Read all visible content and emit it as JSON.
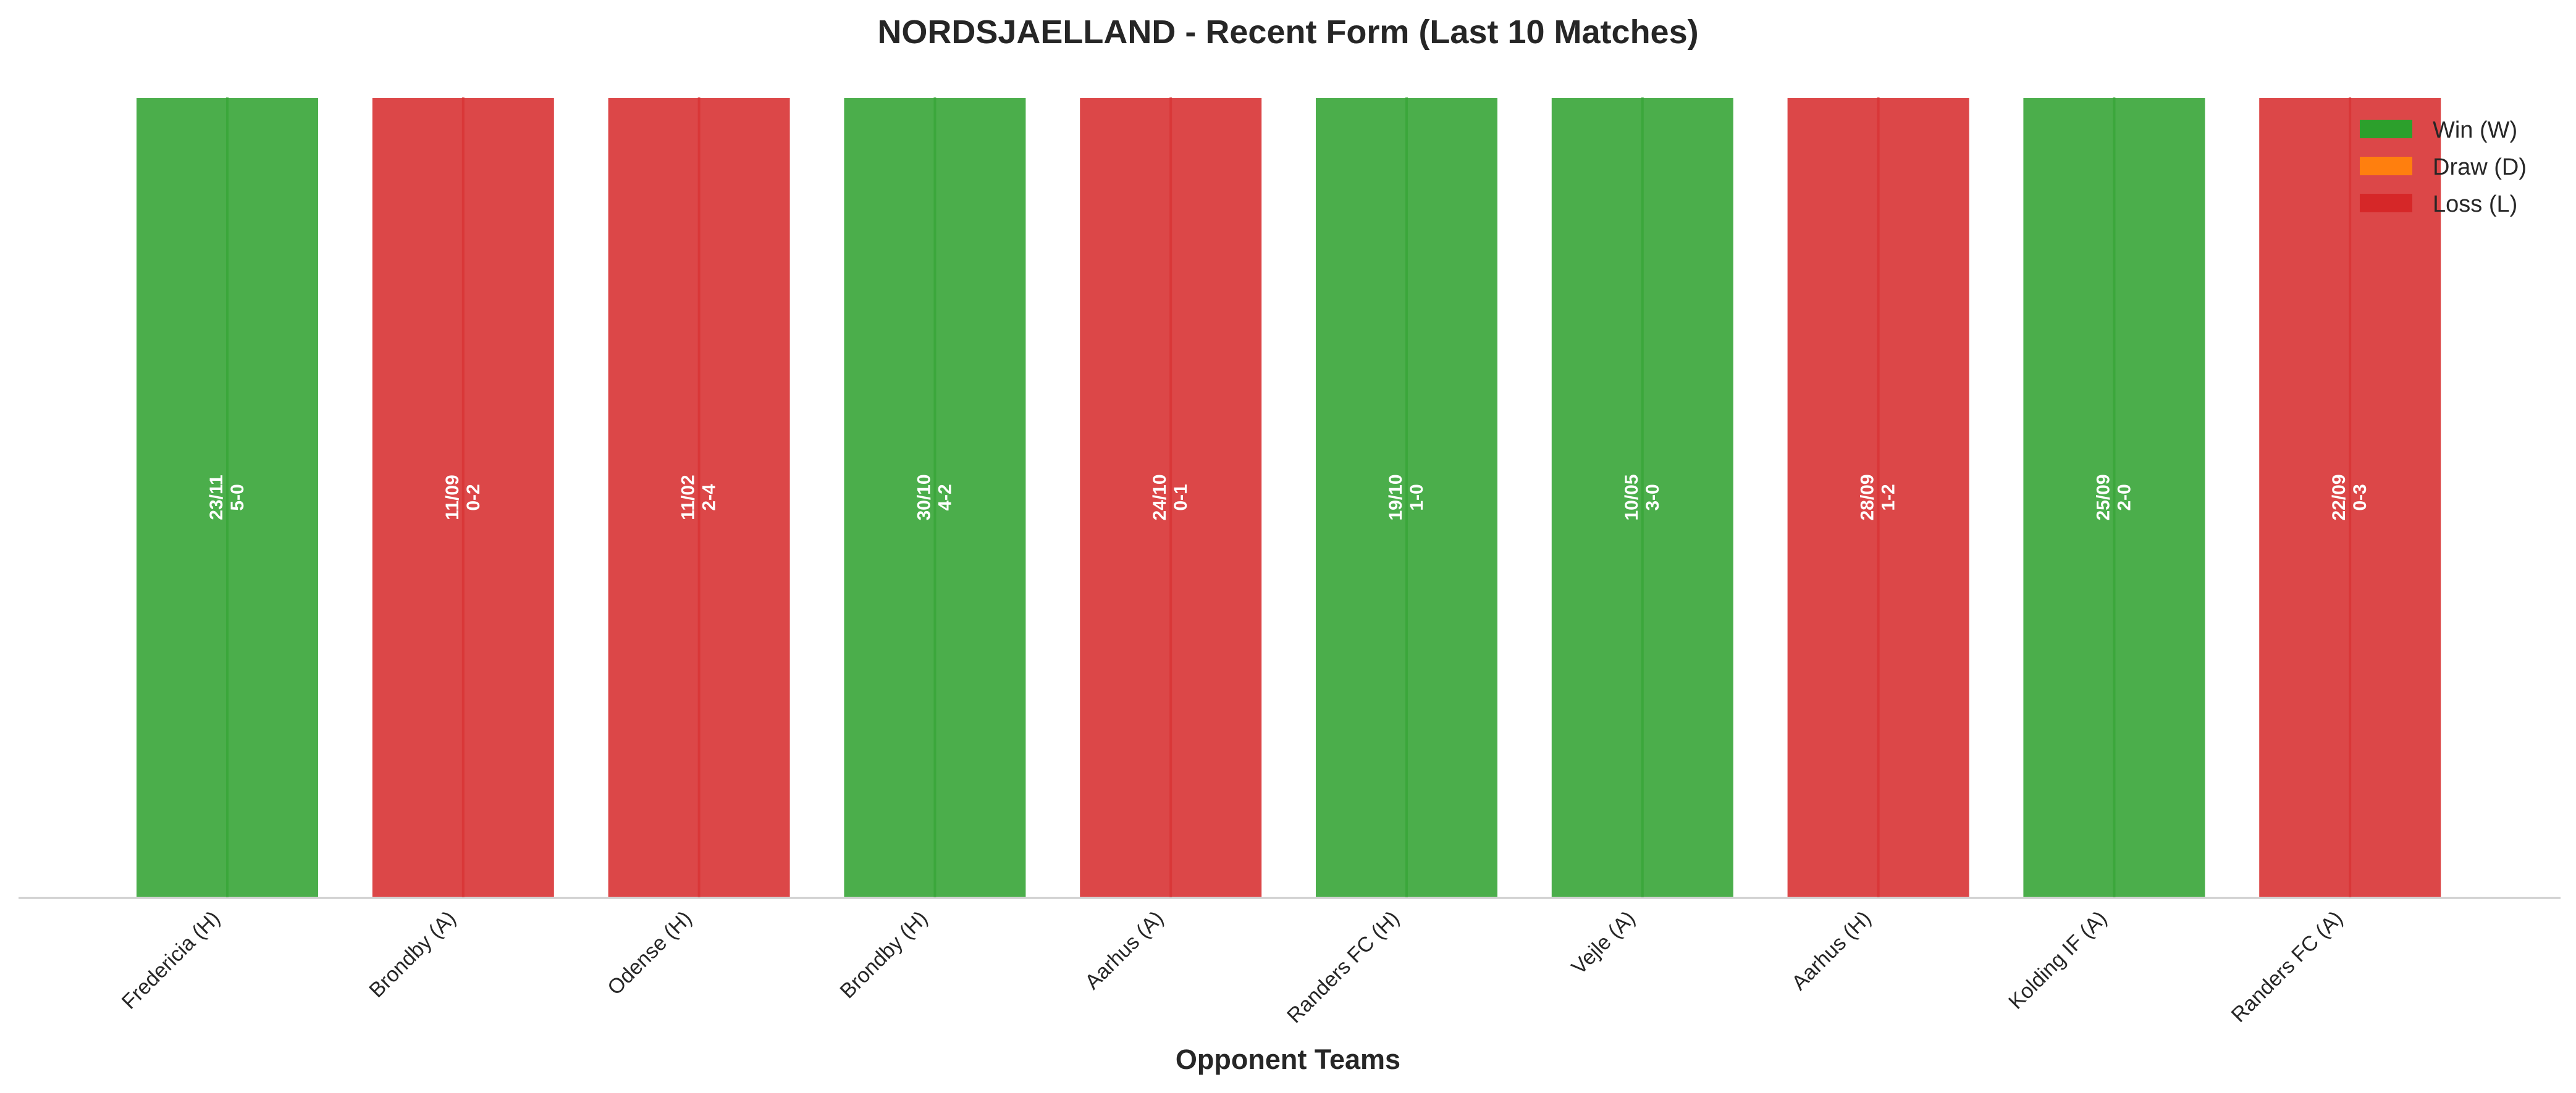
{
  "chart_data": {
    "type": "bar",
    "title": "NORDSJAELLAND - Recent Form (Last 10 Matches)",
    "xlabel": "Opponent Teams",
    "ylabel": "",
    "ylim": [
      0,
      1
    ],
    "grid": false,
    "legend_position": "top-right",
    "categories": [
      "Fredericia (H)",
      "Brondby (A)",
      "Odense (H)",
      "Brondby (H)",
      "Aarhus (A)",
      "Randers FC (H)",
      "Vejle (A)",
      "Aarhus (H)",
      "Kolding IF (A)",
      "Randers FC (A)"
    ],
    "values": [
      1,
      1,
      1,
      1,
      1,
      1,
      1,
      1,
      1,
      1
    ],
    "results": [
      "W",
      "L",
      "L",
      "W",
      "L",
      "W",
      "W",
      "L",
      "W",
      "L"
    ],
    "dates": [
      "23/11",
      "11/09",
      "11/02",
      "30/10",
      "24/10",
      "19/10",
      "10/05",
      "28/09",
      "25/09",
      "22/09"
    ],
    "scores": [
      "5-0",
      "0-2",
      "2-4",
      "4-2",
      "0-1",
      "1-0",
      "3-0",
      "1-2",
      "2-0",
      "0-3"
    ],
    "legend": [
      {
        "key": "W",
        "label": "Win (W)",
        "color": "#2ca02c"
      },
      {
        "key": "D",
        "label": "Draw (D)",
        "color": "#ff7f0e"
      },
      {
        "key": "L",
        "label": "Loss (L)",
        "color": "#d62728"
      }
    ]
  }
}
